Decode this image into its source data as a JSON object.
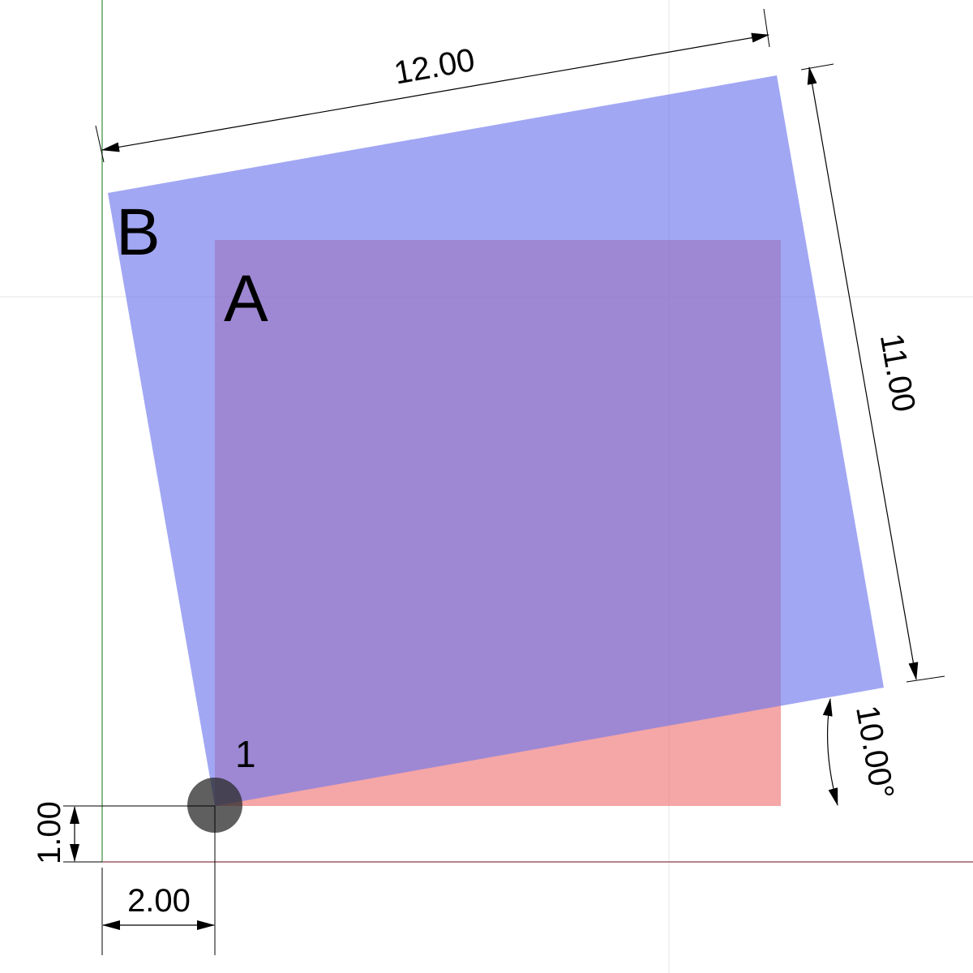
{
  "shapes": {
    "a": {
      "label": "A",
      "color": "#ef7676"
    },
    "b": {
      "label": "B",
      "color": "#6f78ec"
    }
  },
  "pivot": {
    "label": "1",
    "color": "#2a2a2a"
  },
  "dimensions": {
    "width": "12.00",
    "height": "11.00",
    "angle": "10.00°",
    "offset_x": "2.00",
    "offset_y": "1.00"
  },
  "axes": {
    "x_color": "#8b3a4a",
    "y_color": "#3a8a3a",
    "grid_color": "#e8e8e8"
  }
}
